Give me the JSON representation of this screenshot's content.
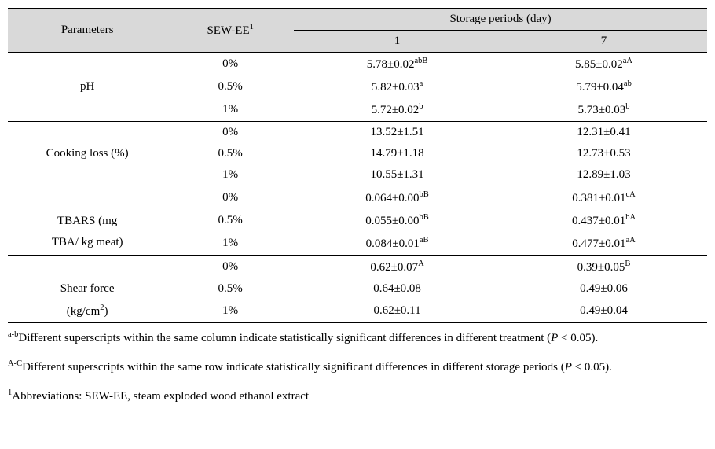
{
  "table": {
    "header": {
      "parameters": "Parameters",
      "sewee": "SEW-EE",
      "sewee_sup": "1",
      "storage_title": "Storage periods (day)",
      "day1": "1",
      "day7": "7"
    },
    "groups": [
      {
        "param": "pH",
        "rows": [
          {
            "sewee": "0%",
            "d1": "5.78±0.02",
            "d1s": "abB",
            "d7": "5.85±0.02",
            "d7s": "aA"
          },
          {
            "sewee": "0.5%",
            "d1": "5.82±0.03",
            "d1s": "a",
            "d7": "5.79±0.04",
            "d7s": "ab"
          },
          {
            "sewee": "1%",
            "d1": "5.72±0.02",
            "d1s": "b",
            "d7": "5.73±0.03",
            "d7s": "b"
          }
        ]
      },
      {
        "param": "Cooking loss (%)",
        "rows": [
          {
            "sewee": "0%",
            "d1": "13.52±1.51",
            "d1s": "",
            "d7": "12.31±0.41",
            "d7s": ""
          },
          {
            "sewee": "0.5%",
            "d1": "14.79±1.18",
            "d1s": "",
            "d7": "12.73±0.53",
            "d7s": ""
          },
          {
            "sewee": "1%",
            "d1": "10.55±1.31",
            "d1s": "",
            "d7": "12.89±1.03",
            "d7s": ""
          }
        ]
      },
      {
        "param_line1": "TBARS (mg",
        "param_line2": "TBA/ kg meat)",
        "rows": [
          {
            "sewee": "0%",
            "d1": "0.064±0.00",
            "d1s": "bB",
            "d7": "0.381±0.01",
            "d7s": "cA"
          },
          {
            "sewee": "0.5%",
            "d1": "0.055±0.00",
            "d1s": "bB",
            "d7": "0.437±0.01",
            "d7s": "bA"
          },
          {
            "sewee": "1%",
            "d1": "0.084±0.01",
            "d1s": "aB",
            "d7": "0.477±0.01",
            "d7s": "aA"
          }
        ]
      },
      {
        "param_line1": "Shear force",
        "param_line2_pre": "(kg/cm",
        "param_line2_sup": "2",
        "param_line2_post": ")",
        "rows": [
          {
            "sewee": "0%",
            "d1": "0.62±0.07",
            "d1s": "A",
            "d7": "0.39±0.05",
            "d7s": "B"
          },
          {
            "sewee": "0.5%",
            "d1": "0.64±0.08",
            "d1s": "",
            "d7": "0.49±0.06",
            "d7s": ""
          },
          {
            "sewee": "1%",
            "d1": "0.62±0.11",
            "d1s": "",
            "d7": "0.49±0.04",
            "d7s": ""
          }
        ]
      }
    ]
  },
  "footnotes": {
    "f1_sup": "a-b",
    "f1_pre": "Different superscripts within the same column indicate statistically significant differences in different treatment (",
    "f1_p": "P",
    "f1_post": " < 0.05).",
    "f2_sup": "A-C",
    "f2_pre": "Different superscripts within the same row indicate statistically significant differences in different storage periods (",
    "f2_p": "P",
    "f2_post": " < 0.05).",
    "f3_sup": "1",
    "f3_txt": "Abbreviations: SEW-EE, steam exploded wood ethanol extract"
  }
}
